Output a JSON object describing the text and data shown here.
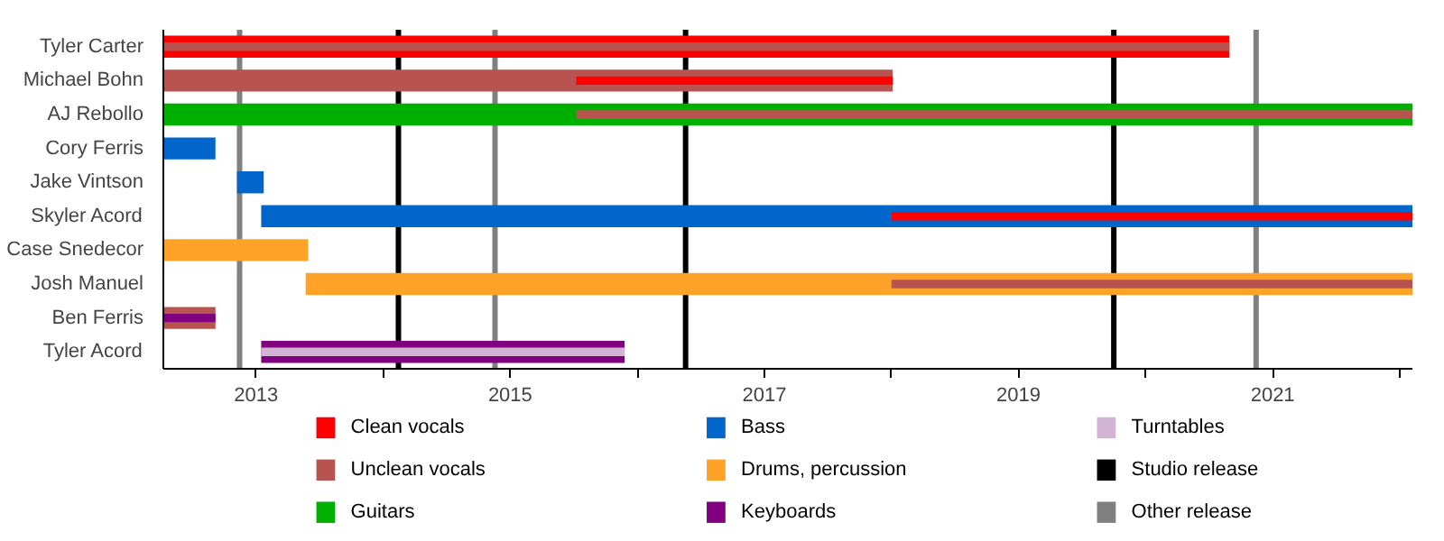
{
  "chart_data": {
    "type": "bar",
    "orientation": "horizontal",
    "legend": "bottom",
    "grid": false,
    "categories": [
      "Tyler Carter",
      "Michael Bohn",
      "AJ Rebollo",
      "Cory Ferris",
      "Jake Vintson",
      "Skyler Acord",
      "Case Snedecor",
      "Josh Manuel",
      "Ben Ferris",
      "Tyler Acord"
    ],
    "xlim": [
      2012.27,
      2022.1
    ],
    "xticks": [
      2013,
      {
        "value": 2014,
        "label": null
      },
      2015,
      {
        "value": 2016,
        "label": null
      },
      2017,
      {
        "value": 2018,
        "label": null
      },
      2019,
      {
        "value": 2020,
        "label": null
      },
      2021,
      {
        "value": 2022,
        "label": null
      }
    ],
    "series": [
      {
        "name": "Clean vocals",
        "color": "#ff0000",
        "base": [
          2012.27,
          2015.52,
          null,
          null,
          null,
          2018.0,
          null,
          null,
          null,
          null
        ],
        "values": [
          8.39,
          2.49,
          null,
          null,
          null,
          4.1,
          null,
          null,
          null,
          null
        ]
      },
      {
        "name": "Unclean vocals",
        "color": "#b85450",
        "base": [
          2012.27,
          2012.27,
          2015.52,
          null,
          null,
          null,
          null,
          2018.0,
          2012.27,
          null
        ],
        "values": [
          8.39,
          5.74,
          6.58,
          null,
          null,
          null,
          null,
          4.1,
          0.41,
          null
        ]
      },
      {
        "name": "Guitars",
        "color": "#00b000",
        "base": [
          null,
          null,
          2012.27,
          null,
          null,
          null,
          null,
          null,
          null,
          null
        ],
        "values": [
          null,
          null,
          9.83,
          null,
          null,
          null,
          null,
          null,
          null,
          null
        ]
      },
      {
        "name": "Bass",
        "color": "#0066cc",
        "base": [
          null,
          null,
          null,
          2012.27,
          2012.85,
          2013.04,
          null,
          null,
          null,
          null
        ],
        "values": [
          null,
          null,
          null,
          0.41,
          0.21,
          9.06,
          null,
          null,
          null,
          null
        ]
      },
      {
        "name": "Drums, percussion",
        "color": "#ffa228",
        "base": [
          null,
          null,
          null,
          null,
          null,
          null,
          2012.27,
          2013.39,
          null,
          null
        ],
        "values": [
          null,
          null,
          null,
          null,
          null,
          null,
          1.14,
          8.71,
          null,
          null
        ]
      },
      {
        "name": "Keyboards",
        "color": "#800080",
        "base": [
          null,
          null,
          null,
          null,
          null,
          null,
          null,
          null,
          2012.27,
          2013.04
        ],
        "values": [
          null,
          null,
          null,
          null,
          null,
          null,
          null,
          null,
          0.41,
          2.86
        ]
      },
      {
        "name": "Turntables",
        "color": "#d4b4d4",
        "base": [
          null,
          null,
          null,
          null,
          null,
          null,
          null,
          null,
          null,
          2013.04
        ],
        "values": [
          null,
          null,
          null,
          null,
          null,
          null,
          null,
          null,
          null,
          2.86
        ]
      }
    ],
    "ref_lines": [
      {
        "axis": "x",
        "value": 2014.12,
        "label": "Studio release",
        "color": "#000000"
      },
      {
        "axis": "x",
        "value": 2016.38,
        "color": "#000000"
      },
      {
        "axis": "x",
        "value": 2019.75,
        "color": "#000000"
      },
      {
        "axis": "x",
        "value": 2012.87,
        "label": "Other release",
        "color": "#808080"
      },
      {
        "axis": "x",
        "value": 2014.88,
        "color": "#808080"
      },
      {
        "axis": "x",
        "value": 2020.87,
        "color": "#808080"
      }
    ]
  }
}
